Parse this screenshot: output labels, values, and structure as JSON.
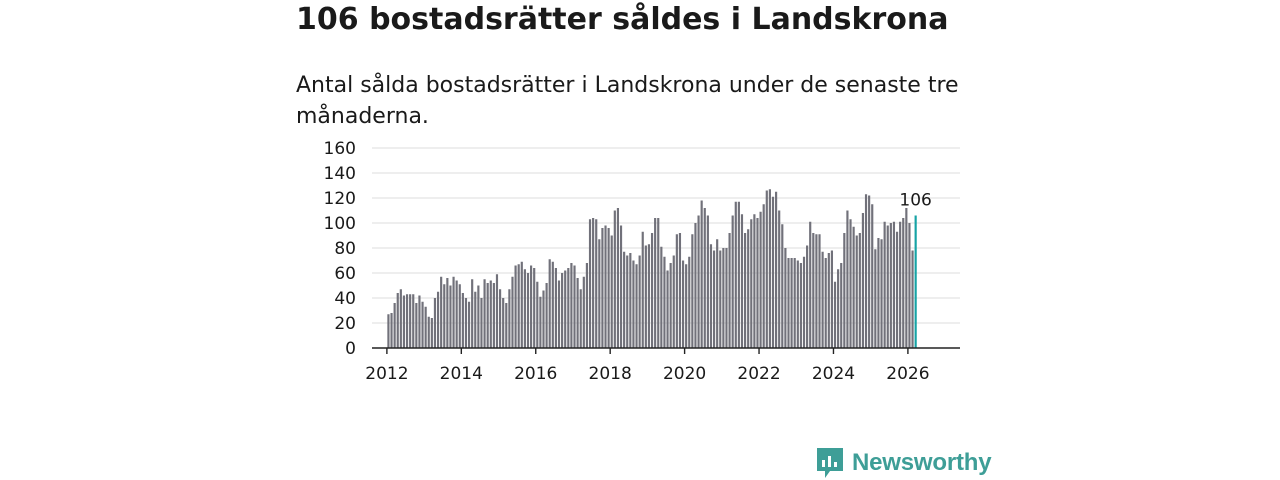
{
  "title": "106 bostadsrätter såldes i Landskrona",
  "subtitle": "Antal sålda bostadsrätter i Landskrona under de senaste tre månaderna.",
  "brand": {
    "name": "Newsworthy",
    "color": "#3e9e97"
  },
  "colors": {
    "bar": "#71717a",
    "highlight": "#16a3a5",
    "grid": "#dcdcdc",
    "axis": "#222222"
  },
  "chart_data": {
    "type": "bar",
    "x_start": "2012-01",
    "ylim": [
      0,
      160
    ],
    "yticks": [
      0,
      20,
      40,
      60,
      80,
      100,
      120,
      140,
      160
    ],
    "xlim": [
      2011.6,
      2027.4
    ],
    "xticks": [
      2012,
      2014,
      2016,
      2018,
      2020,
      2022,
      2024,
      2026
    ],
    "values": [
      27,
      28,
      36,
      44,
      47,
      42,
      43,
      43,
      43,
      36,
      42,
      37,
      33,
      25,
      24,
      40,
      45,
      57,
      51,
      56,
      50,
      57,
      54,
      51,
      44,
      40,
      37,
      55,
      45,
      50,
      40,
      55,
      52,
      54,
      52,
      59,
      47,
      40,
      36,
      47,
      57,
      66,
      67,
      69,
      63,
      60,
      66,
      64,
      53,
      41,
      46,
      52,
      71,
      69,
      64,
      54,
      60,
      62,
      64,
      68,
      66,
      56,
      47,
      57,
      68,
      103,
      104,
      103,
      87,
      96,
      98,
      96,
      90,
      110,
      112,
      98,
      77,
      74,
      76,
      70,
      67,
      74,
      93,
      82,
      83,
      92,
      104,
      104,
      81,
      73,
      62,
      68,
      74,
      91,
      92,
      70,
      67,
      73,
      91,
      100,
      106,
      118,
      112,
      106,
      83,
      78,
      87,
      78,
      80,
      80,
      92,
      106,
      117,
      117,
      107,
      92,
      95,
      103,
      107,
      104,
      109,
      115,
      126,
      127,
      121,
      125,
      110,
      99,
      80,
      72,
      72,
      72,
      70,
      68,
      73,
      82,
      101,
      92,
      91,
      91,
      77,
      72,
      76,
      78,
      53,
      63,
      68,
      92,
      110,
      103,
      97,
      90,
      92,
      108,
      123,
      122,
      115,
      79,
      88,
      87,
      101,
      98,
      100,
      101,
      93,
      101,
      104,
      112,
      100,
      78,
      106
    ],
    "highlight_last": true,
    "data_labels": [
      {
        "category": "2026-03",
        "text": "106"
      }
    ],
    "title": "106 bostadsrätter såldes i Landskrona",
    "xlabel": "",
    "ylabel": ""
  }
}
